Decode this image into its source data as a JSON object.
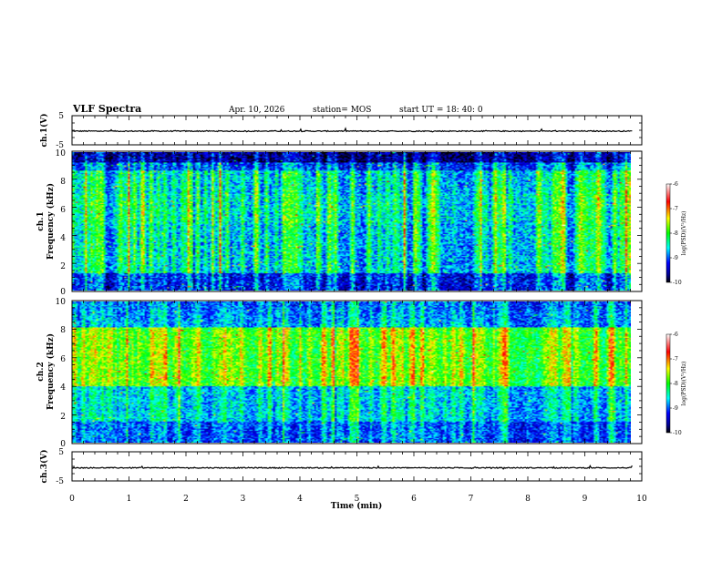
{
  "header": {
    "title": "VLF Spectra",
    "date": "Apr. 10, 2026",
    "station": "station= MOS",
    "start_ut": "start  UT =   18: 40: 0"
  },
  "chart_data": [
    {
      "type": "line",
      "name": "ch1-waveform",
      "ylabel": "ch.1(V)",
      "ylim": [
        -5,
        5
      ],
      "yticks": [
        "5",
        "-5"
      ],
      "baseline_v": -0.3,
      "x_range_min": [
        0,
        9.83
      ]
    },
    {
      "type": "heatmap",
      "name": "ch1-spectrogram",
      "ylabel": "ch.1\nFrequency (kHz)",
      "ylabel_lines": [
        "ch.1",
        "Frequency (kHz)"
      ],
      "ylim": [
        0,
        10
      ],
      "yticks": [
        "0",
        "2",
        "4",
        "6",
        "8",
        "10"
      ],
      "x_range_min": [
        0,
        9.83
      ],
      "colorbar": {
        "label": "log(PSD)(V²/Hz)",
        "range": [
          -10,
          -6
        ],
        "ticks": [
          "-6",
          "-7",
          "-8",
          "-9",
          "-10"
        ]
      }
    },
    {
      "type": "heatmap",
      "name": "ch2-spectrogram",
      "ylabel": "ch.2\nFrequency (kHz)",
      "ylabel_lines": [
        "ch.2",
        "Frequency (kHz)"
      ],
      "ylim": [
        0,
        10
      ],
      "yticks": [
        "0",
        "2",
        "4",
        "6",
        "8",
        "10"
      ],
      "x_range_min": [
        0,
        9.83
      ],
      "colorbar": {
        "label": "log(PSD)(V²/Hz)",
        "range": [
          -10,
          -6
        ],
        "ticks": [
          "-6",
          "-7",
          "-8",
          "-9",
          "-10"
        ]
      }
    },
    {
      "type": "line",
      "name": "ch3-waveform",
      "ylabel": "ch.3(V)",
      "ylim": [
        -5,
        5
      ],
      "yticks": [
        "5",
        "-5"
      ],
      "baseline_v": -0.5,
      "x_range_min": [
        0,
        9.83
      ]
    }
  ],
  "x_axis": {
    "xlabel": "Time  (min)",
    "xlim": [
      0,
      10
    ],
    "xticks": [
      "0",
      "1",
      "2",
      "3",
      "4",
      "5",
      "6",
      "7",
      "8",
      "9",
      "10"
    ]
  },
  "colors": {
    "background": "#ffffff",
    "axes": "#000000",
    "colormap": [
      "#000000",
      "#000080",
      "#0000ff",
      "#00ffff",
      "#00ff00",
      "#ffff00",
      "#ff0000",
      "#ffffff"
    ]
  }
}
